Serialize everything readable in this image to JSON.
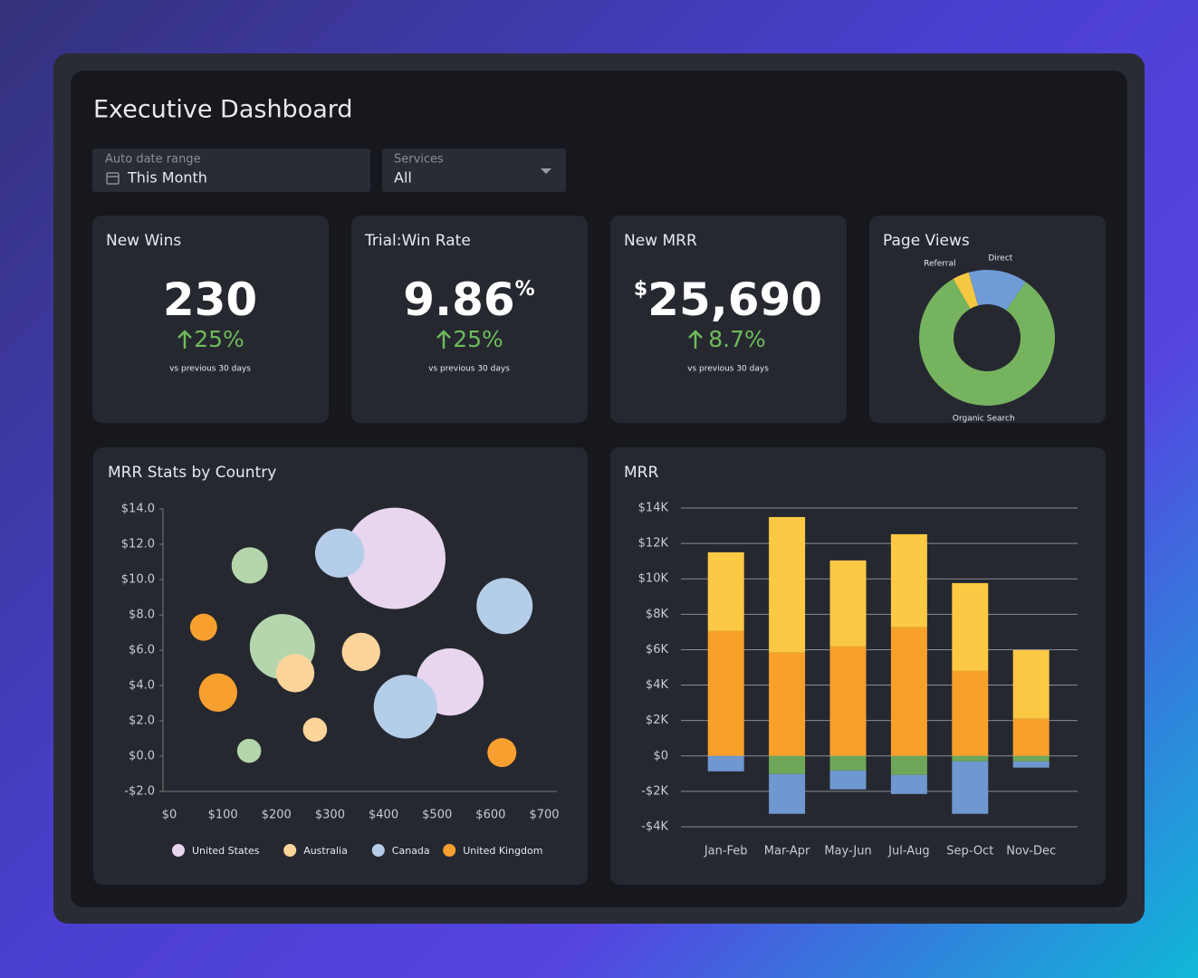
{
  "title": "Executive Dashboard",
  "filters": [
    {
      "label": "Auto date range",
      "value": "This Month"
    },
    {
      "label": "Services",
      "value": "All"
    }
  ],
  "kpis": [
    {
      "title": "New Wins",
      "value": "230",
      "change": "25%",
      "note": "vs previous 30 days"
    },
    {
      "title": "Trial:Win Rate",
      "value": "9.86",
      "unit": "%",
      "change": "25%",
      "note": "vs previous 30 days"
    },
    {
      "title": "New MRR",
      "prefix": "$",
      "value": "25,690",
      "change": "8.7%",
      "note": "vs previous 30 days"
    }
  ],
  "chart_data": [
    {
      "type": "pie",
      "title": "Page Views",
      "hole": true,
      "categories": [
        "Referral",
        "Direct",
        "Organic Search"
      ],
      "values": [
        4,
        14,
        82
      ],
      "colors": [
        "#f5c842",
        "#6f9bd6",
        "#76b35f"
      ]
    },
    {
      "type": "bubble",
      "title": "MRR Stats by Country",
      "xlim": [
        0,
        700
      ],
      "ylim": [
        -2,
        14
      ],
      "xticks": [
        {
          "value": 0,
          "label": "$0"
        },
        {
          "value": 100,
          "label": "$100"
        },
        {
          "value": 200,
          "label": "$200"
        },
        {
          "value": 300,
          "label": "$300"
        },
        {
          "value": 400,
          "label": "$400"
        },
        {
          "value": 500,
          "label": "$500"
        },
        {
          "value": 600,
          "label": "$600"
        },
        {
          "value": 700,
          "label": "$700"
        }
      ],
      "yticks": [
        {
          "value": -2,
          "label": "-$2.0"
        },
        {
          "value": 0,
          "label": "$0.0"
        },
        {
          "value": 2,
          "label": "$2.0"
        },
        {
          "value": 4,
          "label": "$4.0"
        },
        {
          "value": 6,
          "label": "$6.0"
        },
        {
          "value": 8,
          "label": "$8.0"
        },
        {
          "value": 10,
          "label": "$10.0"
        },
        {
          "value": 12,
          "label": "$12.0"
        },
        {
          "value": 14,
          "label": "$14.0"
        }
      ],
      "series": [
        {
          "color": "#b5d6ac",
          "x": [
            150,
            211,
            149
          ],
          "values": [
            10.8,
            6.2,
            0.3
          ],
          "sizes": [
            25,
            81,
            11
          ]
        },
        {
          "name": "United States",
          "color": "#e8d5ee",
          "x": [
            421,
            524
          ],
          "values": [
            11.2,
            4.2
          ],
          "sizes": [
            196,
            86
          ]
        },
        {
          "name": "Australia",
          "color": "#fdd49a",
          "x": [
            235,
            358,
            272
          ],
          "values": [
            4.7,
            5.9,
            1.5
          ],
          "sizes": [
            28,
            28,
            11
          ]
        },
        {
          "name": "Canada",
          "color": "#b4cde8",
          "x": [
            318,
            626,
            441
          ],
          "values": [
            11.5,
            8.5,
            2.8
          ],
          "sizes": [
            46,
            60,
            77
          ]
        },
        {
          "name": "United Kingdom",
          "color": "#f7a030",
          "x": [
            64,
            91,
            621
          ],
          "values": [
            7.3,
            3.6,
            0.2
          ],
          "sizes": [
            14,
            28,
            16
          ]
        }
      ]
    },
    {
      "type": "bar",
      "title": "MRR",
      "stacked": true,
      "grid": true,
      "categories": [
        "Jan-Feb",
        "Mar-Apr",
        "May-Jun",
        "Jul-Aug",
        "Sep-Oct",
        "Nov-Dec"
      ],
      "ylim": [
        -4000,
        14000
      ],
      "yticks": [
        {
          "value": -4000,
          "label": "-$4K"
        },
        {
          "value": -2000,
          "label": "-$2K"
        },
        {
          "value": 0,
          "label": "$0"
        },
        {
          "value": 2000,
          "label": "$2K"
        },
        {
          "value": 4000,
          "label": "$4K"
        },
        {
          "value": 6000,
          "label": "$6K"
        },
        {
          "value": 8000,
          "label": "$8K"
        },
        {
          "value": 10000,
          "label": "$10K"
        },
        {
          "value": 12000,
          "label": "$12K"
        },
        {
          "value": 14000,
          "label": "$14K"
        }
      ],
      "series": [
        {
          "color": "#f8a12a",
          "values": [
            7050,
            5830,
            6180,
            7260,
            4800,
            2100
          ]
        },
        {
          "color": "#fcc944",
          "values": [
            4450,
            7660,
            4860,
            5260,
            4960,
            3880
          ]
        },
        {
          "color": "#6fa75a",
          "values": [
            0,
            -1020,
            -820,
            -1070,
            -310,
            -310
          ]
        },
        {
          "color": "#6f97d0",
          "values": [
            -870,
            -2250,
            -1070,
            -1080,
            -2960,
            -350
          ]
        }
      ]
    }
  ]
}
